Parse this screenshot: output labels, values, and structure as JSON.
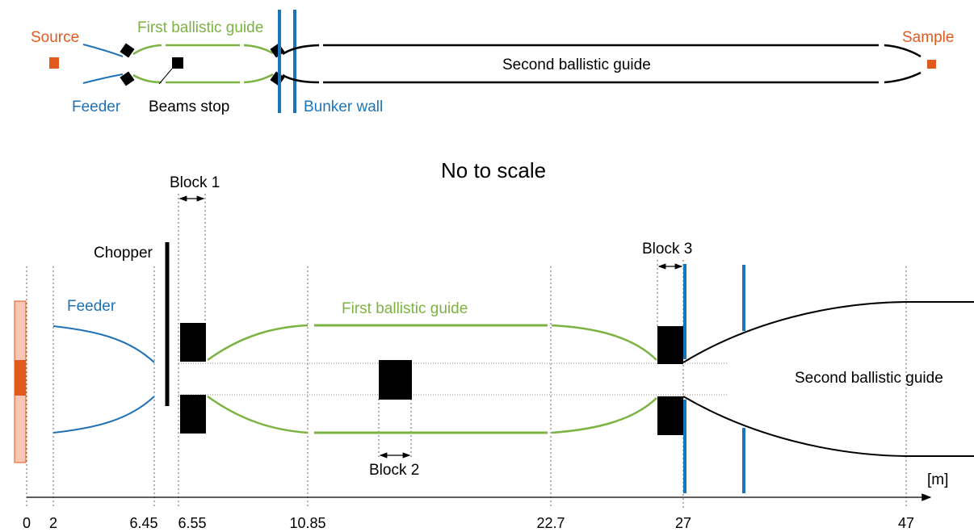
{
  "colors": {
    "source": "#e05a1e",
    "source_light": "#f7c7b3",
    "feeder": "#2171b5",
    "first_guide": "#7cb342",
    "wall": "#1b75bb",
    "black": "#000000",
    "grid": "#888888"
  },
  "overview": {
    "source": "Source",
    "first_guide": "First ballistic guide",
    "sample": "Sample",
    "second_guide": "Second ballistic guide",
    "feeder": "Feeder",
    "beam_stop": "Beams stop",
    "bunker_wall": "Bunker wall"
  },
  "detail": {
    "title": "No to scale",
    "block1": "Block 1",
    "block2": "Block 2",
    "block3": "Block 3",
    "chopper": "Chopper",
    "feeder": "Feeder",
    "first_guide": "First ballistic guide",
    "second_guide": "Second ballistic guide",
    "unit": "[m]"
  },
  "axis": {
    "ticks": [
      "0",
      "2",
      "6.45",
      "6.55",
      "10.85",
      "22.7",
      "27",
      "47"
    ]
  }
}
